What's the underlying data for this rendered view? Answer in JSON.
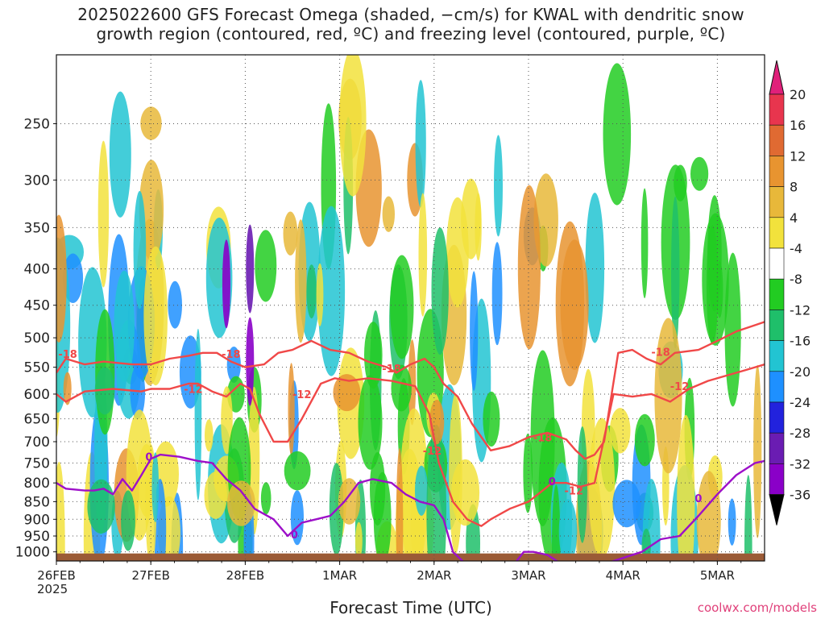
{
  "title": {
    "line1": "2025022600 GFS Forecast Omega (shaded, −cm/s) for KWAL with dendritic snow",
    "line2": "growth region (contoured, red, ºC) and freezing level (contoured, purple, ºC)"
  },
  "watermark": "coolwx.com/models",
  "colors": {
    "omega_neg": [
      "#9b9b9b",
      "#8a00c8",
      "#6a1cb2",
      "#2222dd",
      "#1e90ff",
      "#22c4d2",
      "#1fbf6a",
      "#22cc22"
    ],
    "omega_pos": [
      "#f2e23c",
      "#e8b83a",
      "#e89430",
      "#e06a32",
      "#e8354e",
      "#e0207a"
    ],
    "dendritic": "#f04848",
    "freezing": "#9d10c9",
    "terrain": "#9b5b36"
  },
  "chart_data": {
    "type": "heatmap",
    "title": "2025022600 GFS Forecast Omega (shaded, −cm/s) for KWAL with dendritic snow growth region (contoured, red, ºC) and freezing level (contoured, purple, ºC)",
    "xlabel": "Forecast Time (UTC)",
    "ylabel": "",
    "x_ticks": [
      "26FEB\n2025",
      "27FEB",
      "28FEB",
      "1MAR",
      "2MAR",
      "3MAR",
      "4MAR",
      "5MAR"
    ],
    "y_ticks": [
      250,
      300,
      350,
      400,
      450,
      500,
      550,
      600,
      650,
      700,
      750,
      800,
      850,
      900,
      950,
      1000
    ],
    "y_scale": "log-pressure (inverted)",
    "ylim": [
      1030,
      200
    ],
    "xlim_days": [
      0,
      7.5
    ],
    "colorbar": {
      "labels": [
        20,
        16,
        12,
        8,
        4,
        -4,
        -8,
        -12,
        -16,
        -20,
        -24,
        -28,
        -32,
        -36
      ],
      "extend": "both"
    },
    "contours": [
      {
        "name": "-18",
        "color": "dendritic",
        "x": [
          0,
          0.1,
          0.3,
          0.5,
          0.8,
          1.0,
          1.2,
          1.4,
          1.55,
          1.7,
          1.85,
          2.0,
          2.2,
          2.35,
          2.5,
          2.7,
          2.9,
          3.1,
          3.3,
          3.5,
          3.6,
          3.75,
          3.9,
          4.0,
          4.1,
          4.25,
          4.4,
          4.6,
          4.8,
          5.0,
          5.2,
          5.4,
          5.5,
          5.6,
          5.7,
          5.8,
          5.95,
          6.1,
          6.25,
          6.4,
          6.55,
          6.8,
          7.0,
          7.2,
          7.4,
          7.5
        ],
        "y": [
          560,
          535,
          545,
          540,
          545,
          545,
          535,
          530,
          525,
          525,
          540,
          550,
          545,
          525,
          520,
          505,
          520,
          525,
          540,
          550,
          560,
          545,
          535,
          550,
          580,
          605,
          660,
          720,
          710,
          690,
          680,
          695,
          720,
          740,
          730,
          700,
          525,
          520,
          535,
          545,
          525,
          520,
          505,
          490,
          480,
          475
        ],
        "labels": [
          {
            "x": 0.12,
            "y": 527
          },
          {
            "x": 1.85,
            "y": 527
          },
          {
            "x": 3.55,
            "y": 552
          },
          {
            "x": 5.15,
            "y": 690
          },
          {
            "x": 6.4,
            "y": 523
          }
        ]
      },
      {
        "name": "-12",
        "color": "dendritic",
        "x": [
          0,
          0.1,
          0.3,
          0.6,
          0.9,
          1.0,
          1.2,
          1.4,
          1.5,
          1.65,
          1.8,
          1.95,
          2.05,
          2.15,
          2.3,
          2.45,
          2.6,
          2.8,
          2.95,
          3.1,
          3.3,
          3.55,
          3.8,
          3.95,
          4.05,
          4.2,
          4.35,
          4.5,
          4.6,
          4.8,
          5.0,
          5.1,
          5.25,
          5.4,
          5.55,
          5.7,
          5.9,
          6.1,
          6.3,
          6.5,
          6.7,
          6.9,
          7.1,
          7.3,
          7.5
        ],
        "y": [
          600,
          615,
          595,
          590,
          595,
          590,
          590,
          580,
          580,
          595,
          605,
          580,
          590,
          640,
          700,
          700,
          650,
          580,
          570,
          575,
          570,
          575,
          585,
          640,
          750,
          850,
          900,
          920,
          900,
          870,
          850,
          830,
          800,
          800,
          810,
          800,
          600,
          605,
          600,
          615,
          590,
          575,
          565,
          555,
          545
        ],
        "labels": [
          {
            "x": 1.45,
            "y": 590
          },
          {
            "x": 2.6,
            "y": 600
          },
          {
            "x": 3.98,
            "y": 720
          },
          {
            "x": 5.48,
            "y": 820
          },
          {
            "x": 6.6,
            "y": 585
          }
        ]
      },
      {
        "name": "0",
        "color": "freezing",
        "x": [
          0,
          0.1,
          0.3,
          0.4,
          0.5,
          0.6,
          0.7,
          0.8,
          0.9,
          1.0,
          1.1,
          1.3,
          1.5,
          1.65,
          1.8,
          1.95,
          2.1,
          2.3,
          2.45,
          2.6,
          2.75,
          2.9,
          3.05,
          3.2,
          3.35,
          3.55,
          3.7,
          3.85,
          4.0,
          4.1,
          4.2,
          4.4,
          4.6,
          4.8,
          4.95,
          5.05,
          5.2,
          5.4,
          5.6,
          5.8,
          6.0,
          6.2,
          6.4,
          6.6,
          6.8,
          7.0,
          7.2,
          7.4,
          7.5
        ],
        "y": [
          800,
          815,
          820,
          820,
          815,
          830,
          790,
          820,
          780,
          740,
          730,
          735,
          745,
          750,
          790,
          820,
          870,
          900,
          950,
          910,
          900,
          890,
          850,
          800,
          790,
          800,
          830,
          850,
          860,
          900,
          1000,
          1060,
          1070,
          1060,
          1000,
          1000,
          1010,
          1050,
          1040,
          1040,
          1020,
          1000,
          960,
          950,
          890,
          830,
          780,
          750,
          745
        ],
        "labels": [
          {
            "x": 0.98,
            "y": 735
          },
          {
            "x": 2.52,
            "y": 945
          },
          {
            "x": 5.25,
            "y": 795
          },
          {
            "x": 6.8,
            "y": 840
          }
        ]
      }
    ],
    "terrain_surface_hpa": 1000
  }
}
